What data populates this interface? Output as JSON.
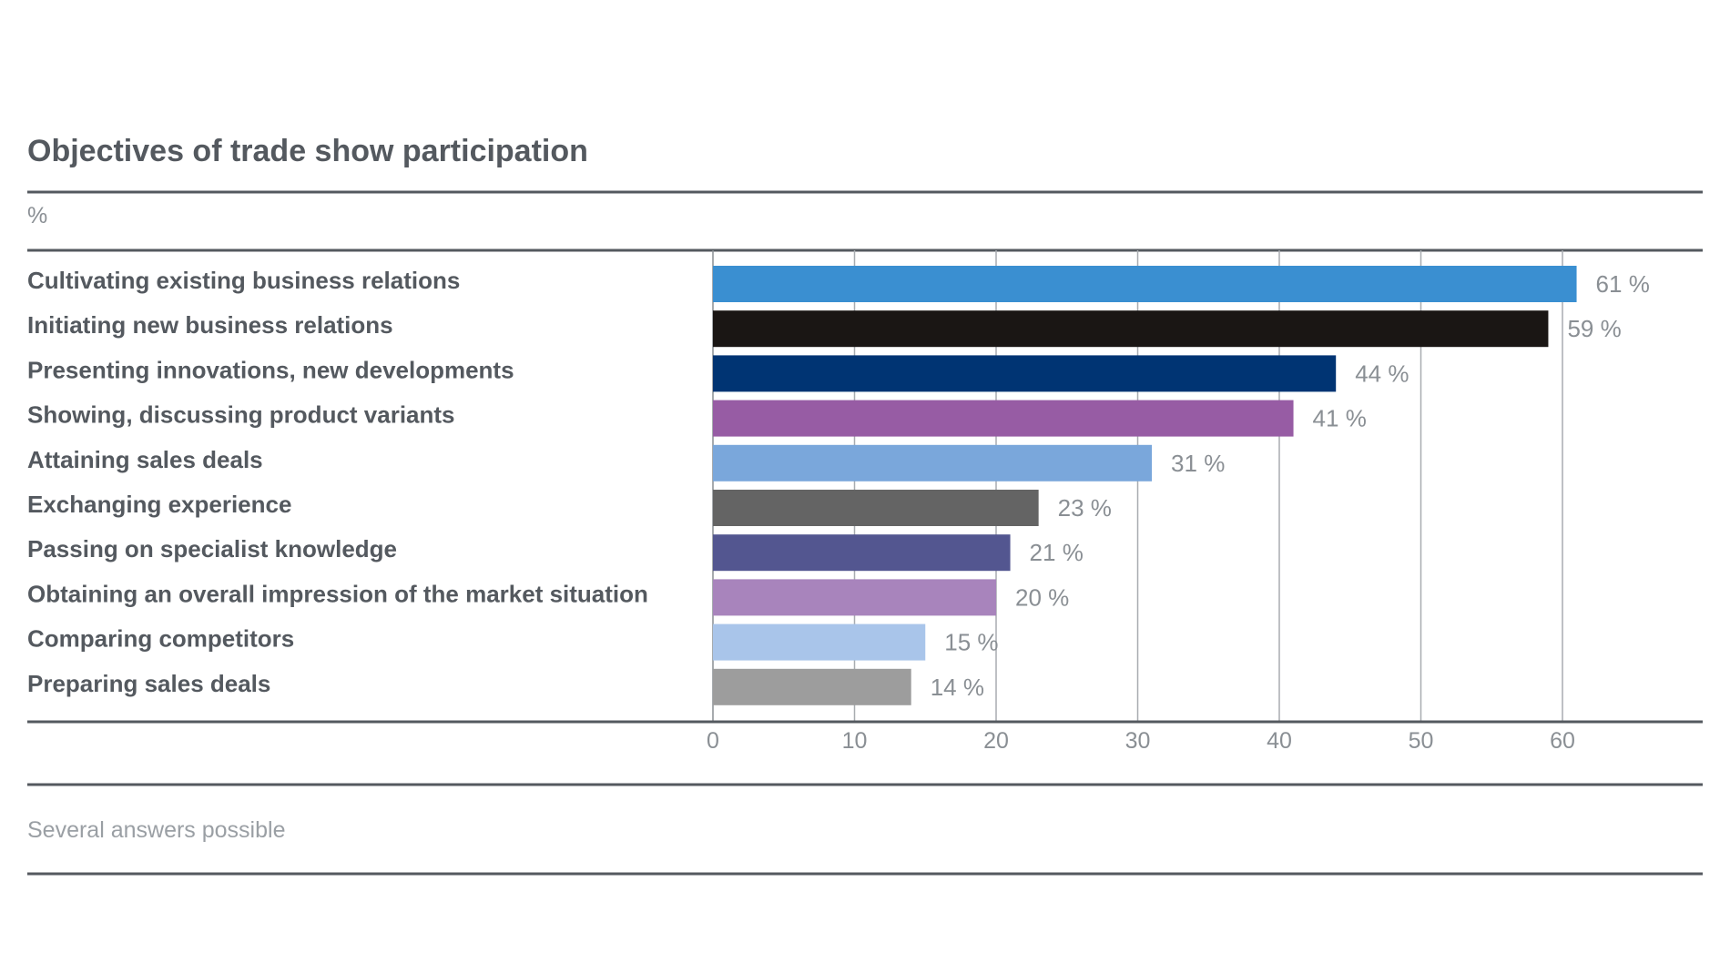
{
  "chart_data": {
    "type": "bar",
    "orientation": "horizontal",
    "title": "Objectives of trade show participation",
    "unit_label": "%",
    "footnote": "Several answers possible",
    "value_suffix": " %",
    "categories": [
      "Cultivating existing business relations",
      "Initiating new business relations",
      "Presenting innovations, new developments",
      "Showing, discussing product variants",
      "Attaining sales deals",
      "Exchanging experience",
      "Passing on specialist knowledge",
      "Obtaining an overall impression of the market situation",
      "Comparing competitors",
      "Preparing sales deals"
    ],
    "values": [
      61,
      59,
      44,
      41,
      31,
      23,
      21,
      20,
      15,
      14
    ],
    "colors": [
      "#3a8fd1",
      "#1a1614",
      "#003473",
      "#975ca4",
      "#7aa7db",
      "#646464",
      "#535690",
      "#a884bc",
      "#a9c5ea",
      "#9d9d9d"
    ],
    "x_ticks": [
      0,
      10,
      20,
      30,
      40,
      50,
      60
    ],
    "xlim": [
      0,
      70
    ],
    "grid": true
  }
}
